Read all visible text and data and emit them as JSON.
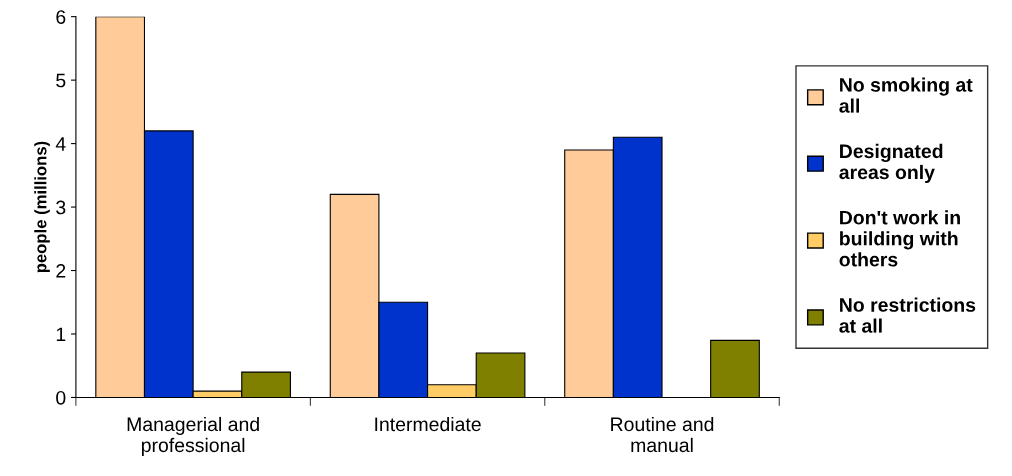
{
  "chart_data": {
    "type": "bar",
    "ylabel": "people (millions)",
    "categories": [
      "Managerial and professional",
      "Intermediate",
      "Routine and manual"
    ],
    "series": [
      {
        "name": "No smoking at all",
        "color": "#ffcc99",
        "values": [
          6,
          3.2,
          3.9
        ]
      },
      {
        "name": "Designated areas only",
        "color": "#0033cc",
        "values": [
          4.2,
          1.5,
          4.1
        ]
      },
      {
        "name": "Don't work in building with others",
        "color": "#ffcc66",
        "values": [
          0.1,
          0.2,
          null
        ]
      },
      {
        "name": "No restrictions at all",
        "color": "#808000",
        "values": [
          0.4,
          0.7,
          0.9
        ]
      }
    ],
    "ylim": [
      0,
      6
    ],
    "yticks": [
      0,
      1,
      2,
      3,
      4,
      5,
      6
    ],
    "grid": false,
    "legend": "right"
  }
}
